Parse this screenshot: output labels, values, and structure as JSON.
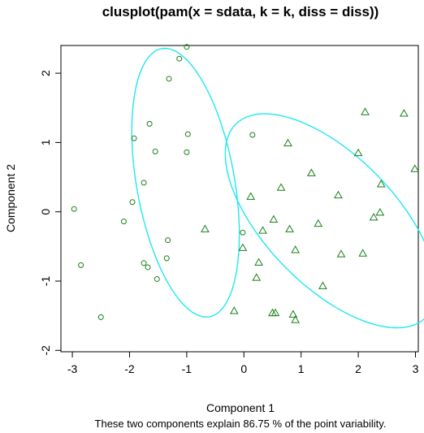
{
  "chart_data": {
    "type": "scatter",
    "title": "clusplot(pam(x = sdata, k = k, diss = diss))",
    "xlabel": "Component 1",
    "ylabel": "Component 2",
    "subtitle": "These two components explain 86.75 % of the point variability.",
    "xlim": [
      -3.2,
      3.05
    ],
    "ylim": [
      -2.02,
      2.4
    ],
    "xticks": [
      -3,
      -2,
      -1,
      0,
      1,
      2,
      3
    ],
    "yticks": [
      -2,
      -1,
      0,
      1,
      2
    ],
    "xtick_labels": [
      "-3",
      "-2",
      "-1",
      "0",
      "1",
      "2",
      "3"
    ],
    "ytick_labels": [
      "-2",
      "-1",
      "0",
      "1",
      "2"
    ],
    "grid": false,
    "colors": {
      "points": "#1a7f1a",
      "ellipse": "#20e8f0",
      "frame": "#000000"
    },
    "series": [
      {
        "marker": "circle",
        "points": [
          [
            -1.0,
            2.38
          ],
          [
            -1.13,
            2.21
          ],
          [
            -1.31,
            1.92
          ],
          [
            -1.65,
            1.27
          ],
          [
            -1.92,
            1.06
          ],
          [
            -1.55,
            0.87
          ],
          [
            -0.98,
            1.12
          ],
          [
            -1.0,
            0.86
          ],
          [
            0.15,
            1.11
          ],
          [
            -1.75,
            0.42
          ],
          [
            -1.95,
            0.14
          ],
          [
            -2.1,
            -0.14
          ],
          [
            -2.97,
            0.04
          ],
          [
            -2.85,
            -0.77
          ],
          [
            -1.33,
            -0.41
          ],
          [
            -1.75,
            -0.74
          ],
          [
            -1.68,
            -0.8
          ],
          [
            -1.35,
            -0.67
          ],
          [
            -1.52,
            -0.97
          ],
          [
            -2.5,
            -1.52
          ],
          [
            -0.02,
            -0.3
          ]
        ]
      },
      {
        "marker": "triangle",
        "points": [
          [
            2.12,
            1.44
          ],
          [
            2.8,
            1.42
          ],
          [
            0.77,
            0.99
          ],
          [
            2.0,
            0.85
          ],
          [
            2.99,
            0.62
          ],
          [
            1.18,
            0.56
          ],
          [
            2.4,
            0.4
          ],
          [
            0.65,
            0.35
          ],
          [
            1.65,
            0.24
          ],
          [
            0.12,
            0.22
          ],
          [
            0.52,
            -0.11
          ],
          [
            2.38,
            -0.01
          ],
          [
            2.27,
            -0.08
          ],
          [
            1.3,
            -0.17
          ],
          [
            0.8,
            -0.25
          ],
          [
            -0.68,
            -0.25
          ],
          [
            0.33,
            -0.27
          ],
          [
            -0.02,
            -0.52
          ],
          [
            0.9,
            -0.55
          ],
          [
            0.26,
            -0.73
          ],
          [
            1.7,
            -0.61
          ],
          [
            2.08,
            -0.6
          ],
          [
            0.22,
            -0.95
          ],
          [
            1.38,
            -1.07
          ],
          [
            -0.17,
            -1.43
          ],
          [
            0.5,
            -1.46
          ],
          [
            0.55,
            -1.46
          ],
          [
            0.86,
            -1.48
          ],
          [
            0.9,
            -1.56
          ]
        ]
      }
    ],
    "ellipses": [
      {
        "center": [
          -1.02,
          0.42
        ],
        "semi_axes": [
          0.85,
          1.98
        ],
        "angle_deg": 13
      },
      {
        "center": [
          1.52,
          -0.13
        ],
        "semi_axes": [
          1.02,
          2.18
        ],
        "angle_deg": 53
      }
    ]
  }
}
